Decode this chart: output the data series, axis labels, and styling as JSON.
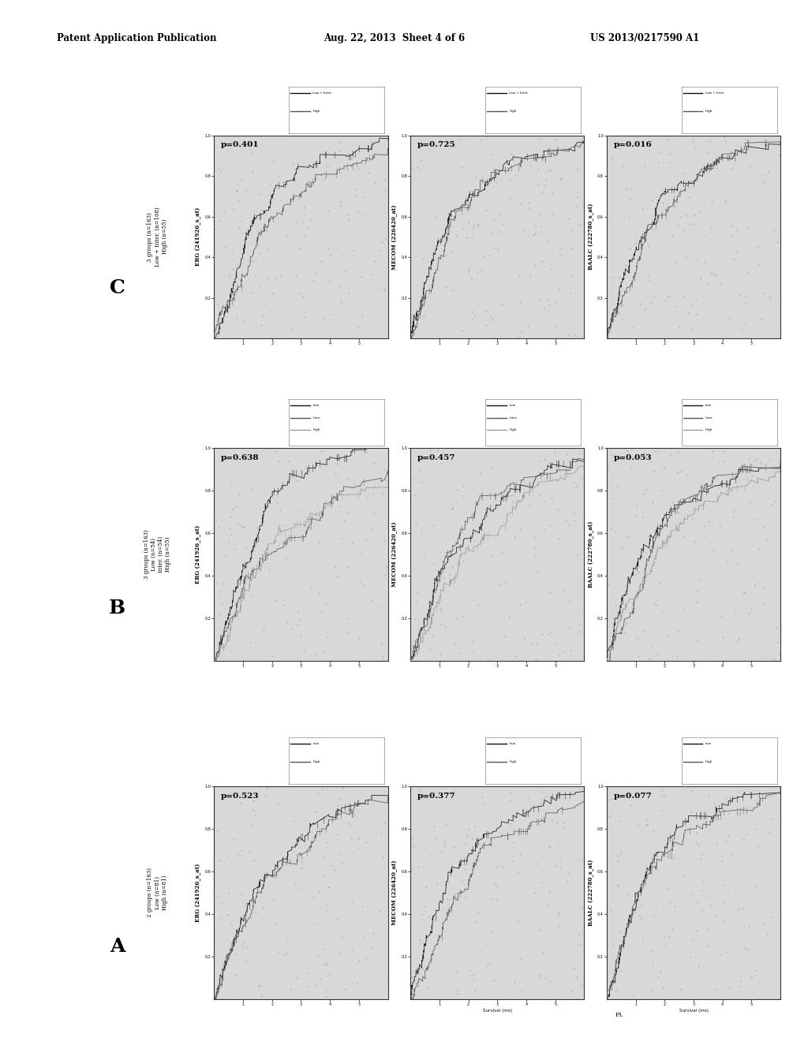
{
  "header_left": "Patent Application Publication",
  "header_mid": "Aug. 22, 2013  Sheet 4 of 6",
  "header_right": "US 2013/0217590 A1",
  "rows": [
    {
      "label": "C",
      "group_text": [
        "3 groups (n=163)",
        "Low + Inter. (n=108)",
        "High (n=55)"
      ],
      "n_curves": 2,
      "legend_labels": [
        "Low + Inter.",
        "High"
      ],
      "plots": [
        {
          "title": "ERG (241926_s_at)",
          "pval": "p=0.401",
          "xlabel": ""
        },
        {
          "title": "MECOM (226420_at)",
          "pval": "p=0.725",
          "xlabel": ""
        },
        {
          "title": "BAALC (222780_s_at)",
          "pval": "p=0.016",
          "xlabel": ""
        }
      ]
    },
    {
      "label": "B",
      "group_text": [
        "3 groups (n=163)",
        "Low (n=54)",
        "Inter. (n=54)",
        "High (n=55)"
      ],
      "n_curves": 3,
      "legend_labels": [
        "Low",
        "Inter.",
        "High"
      ],
      "plots": [
        {
          "title": "ERG (241926_s_at)",
          "pval": "p=0.638",
          "xlabel": ""
        },
        {
          "title": "MECOM (226420_at)",
          "pval": "p=0.457",
          "xlabel": ""
        },
        {
          "title": "BAALC (222780_s_at)",
          "pval": "p=0.053",
          "xlabel": ""
        }
      ]
    },
    {
      "label": "A",
      "group_text": [
        "2 groups (n=163)",
        "Low (n=81)",
        "High (n=81)"
      ],
      "n_curves": 2,
      "legend_labels": [
        "Low",
        "High"
      ],
      "plots": [
        {
          "title": "ERG (241926_s_at)",
          "pval": "p=0.523",
          "xlabel": ""
        },
        {
          "title": "MECOM (226420_at)",
          "pval": "p=0.377",
          "xlabel": "Survival (mo)"
        },
        {
          "title": "BAALC (222780_s_at)",
          "pval": "p=0.077",
          "xlabel": "Survival (mo)"
        }
      ]
    }
  ],
  "bg_color": "#ffffff",
  "plot_bg": "#d8d8d8",
  "footer_label": "Fi."
}
